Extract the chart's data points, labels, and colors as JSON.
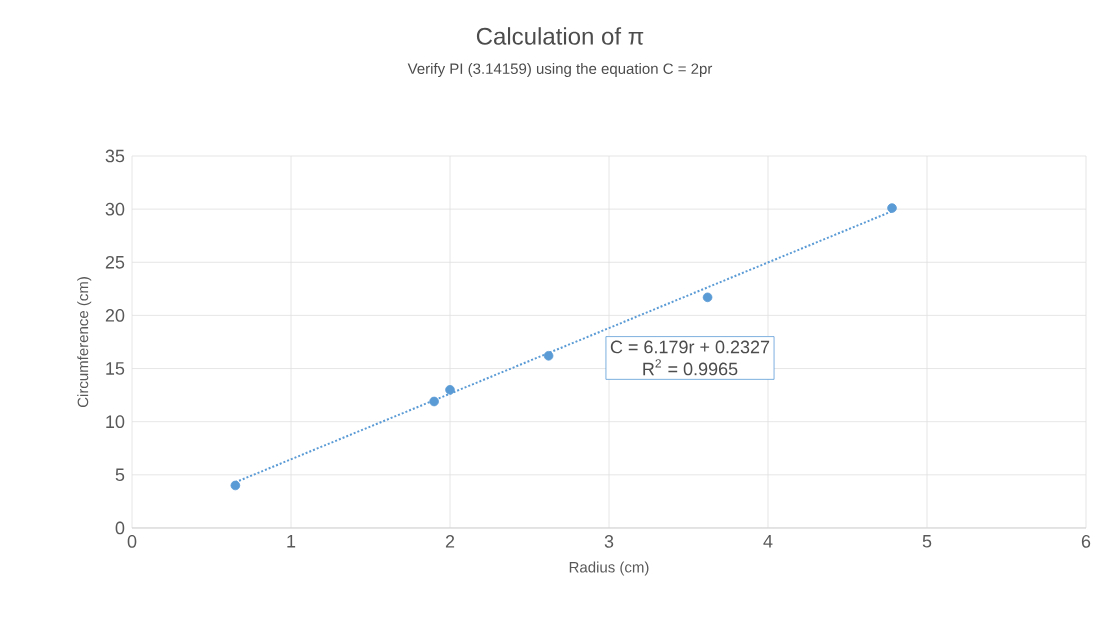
{
  "chart_data": {
    "type": "scatter",
    "title": "Calculation of π",
    "subtitle": "Verify PI (3.14159) using the equation C = 2pr",
    "xlabel": "Radius (cm)",
    "ylabel": "Circumference (cm)",
    "xlim": [
      0,
      6
    ],
    "xticks": [
      0,
      1,
      2,
      3,
      4,
      5,
      6
    ],
    "ylim": [
      0,
      35
    ],
    "yticks": [
      0,
      5,
      10,
      15,
      20,
      25,
      30,
      35
    ],
    "grid": true,
    "marker": "circle",
    "series": [
      {
        "color": "#5b9bd5",
        "x": [
          0.65,
          1.9,
          2.0,
          2.62,
          3.62,
          4.78
        ],
        "values": [
          4.0,
          11.9,
          13.0,
          16.2,
          21.7,
          30.1
        ]
      },
      {
        "type": "line",
        "color": "#5b9bd5",
        "line_style": "dotted",
        "marker": "none",
        "x": [
          0.65,
          4.78
        ],
        "values": [
          4.3,
          29.8
        ]
      }
    ],
    "annotations": [
      "C = 6.179r + 0.2327",
      "R$^{2}$ = 0.9965"
    ]
  }
}
